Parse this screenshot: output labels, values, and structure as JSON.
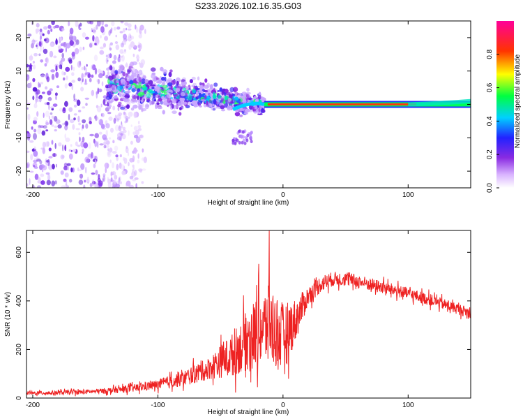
{
  "title": "S233.2026.102.16.35.G03",
  "chart_data": [
    {
      "type": "heatmap",
      "name": "spectrogram",
      "title": "S233.2026.102.16.35.G03",
      "xlabel": "Height of straight line (km)",
      "ylabel": "Frequency (Hz)",
      "xlim": [
        -205,
        150
      ],
      "ylim": [
        -25,
        25
      ],
      "xticks": [
        -200,
        -100,
        0,
        100
      ],
      "yticks": [
        -20,
        -10,
        0,
        10,
        20
      ],
      "colorbar": {
        "label": "Normalized spectral amplitude",
        "range": [
          0,
          1
        ],
        "ticks": [
          0.0,
          0.2,
          0.4,
          0.6,
          0.8
        ],
        "colormap": "purple-blue-cyan-green-yellow-red-magenta"
      },
      "features": {
        "noise_region_km": [
          -205,
          -140
        ],
        "scatter_band_km": [
          -140,
          -15
        ],
        "scatter_center_hz_start": 6,
        "scatter_center_hz_end": 0,
        "detached_blob": {
          "km": [
            -40,
            -25
          ],
          "hz": [
            -12,
            -8
          ]
        },
        "carrier_line_hz": 0,
        "carrier_line_km": [
          -15,
          150
        ],
        "carrier_end_rise_hz": 1
      }
    },
    {
      "type": "line",
      "name": "snr",
      "xlabel": "Height of straight line (km)",
      "ylabel": "SNR (10 * v/v)",
      "xlim": [
        -205,
        150
      ],
      "ylim": [
        0,
        690
      ],
      "xticks": [
        -200,
        -100,
        0,
        100
      ],
      "yticks": [
        0,
        200,
        400,
        600
      ],
      "color": "#ee2222",
      "envelope": {
        "x": [
          -205,
          -180,
          -160,
          -140,
          -120,
          -100,
          -80,
          -60,
          -40,
          -30,
          -20,
          -10,
          0,
          10,
          20,
          30,
          40,
          50,
          60,
          80,
          100,
          120,
          150
        ],
        "y": [
          20,
          22,
          25,
          30,
          40,
          55,
          80,
          120,
          180,
          230,
          280,
          300,
          250,
          320,
          420,
          470,
          490,
          490,
          480,
          455,
          430,
          400,
          350
        ]
      },
      "noise_amplitude": {
        "x": [
          -205,
          -150,
          -100,
          -60,
          -40,
          -20,
          -10,
          0,
          10,
          20,
          40,
          100,
          150
        ],
        "y": [
          8,
          10,
          20,
          45,
          90,
          150,
          170,
          140,
          90,
          40,
          30,
          25,
          22
        ]
      },
      "peak": {
        "x": -11,
        "y": 690
      }
    }
  ]
}
